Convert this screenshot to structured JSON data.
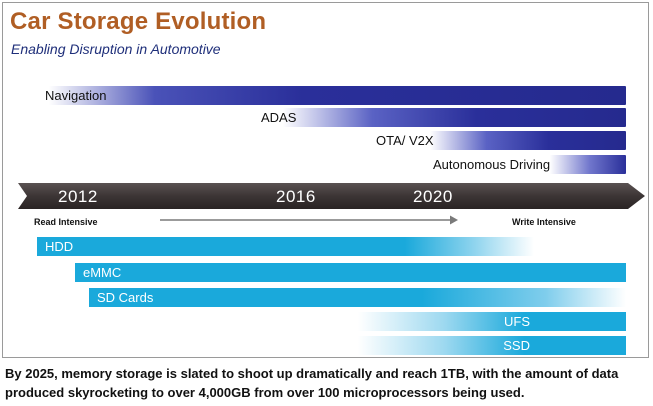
{
  "header": {
    "title": "Car Storage Evolution",
    "subtitle": "Enabling Disruption in Automotive"
  },
  "applications": [
    {
      "label": "Navigation"
    },
    {
      "label": "ADAS"
    },
    {
      "label": "OTA/ V2X"
    },
    {
      "label": "Autonomous Driving"
    }
  ],
  "timeline": {
    "years": [
      "2012",
      "2016",
      "2020"
    ],
    "left_label": "Read Intensive",
    "right_label": "Write Intensive"
  },
  "storage": [
    {
      "label": "HDD"
    },
    {
      "label": "eMMC"
    },
    {
      "label": "SD Cards"
    },
    {
      "label": "UFS"
    },
    {
      "label": "SSD"
    }
  ],
  "caption": "By 2025, memory storage is slated to shoot up dramatically and reach 1TB, with the amount of data produced skyrocketing to over 4,000GB from over 100 microprocessors being used.",
  "colors": {
    "title": "#b05e24",
    "subtitle": "#1f2f7a",
    "navy": "#2a2f9a",
    "cyan": "#1aa9db",
    "timeline": "#3c3535"
  }
}
